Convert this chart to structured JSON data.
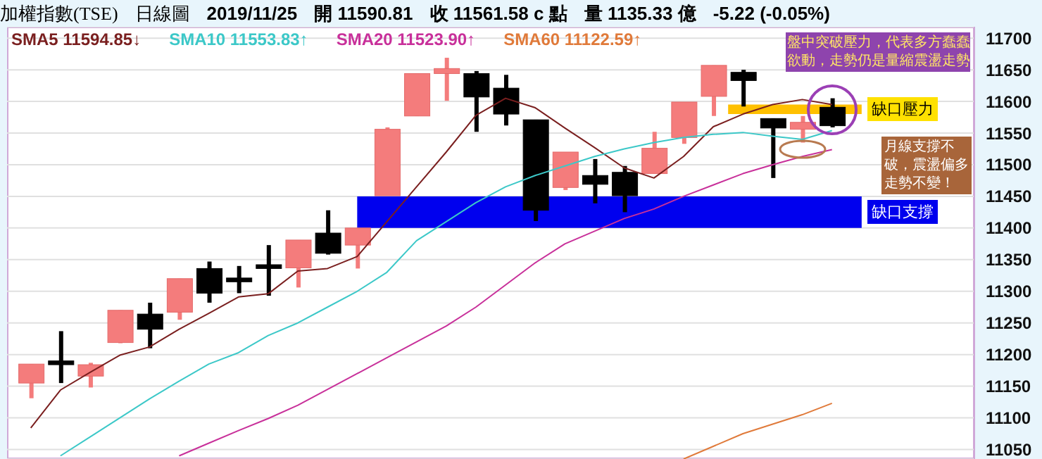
{
  "chart_data": {
    "type": "candlestick",
    "title": "加權指數(TSE)",
    "subtitle": "日線圖",
    "annotations": [
      "2019/11/25",
      "開 11590.81",
      "收 11561.58 c 點",
      "量 1135.33 億",
      "-5.22 (-0.05%)",
      "盤中突破壓力，代表多方蠢蠢欲動，走勢仍是量縮震盪走勢",
      "月線支撐不破，震盪偏多走勢不變！"
    ],
    "categories": [
      null,
      null,
      null,
      null,
      null,
      null,
      null,
      null,
      null,
      null,
      null,
      null,
      null,
      null,
      null,
      null,
      null,
      null,
      null,
      null,
      null,
      null,
      null,
      null,
      null,
      null,
      null,
      null
    ],
    "ohlc": [
      [
        11155,
        11185,
        11131,
        11185
      ],
      [
        11190,
        11237,
        11155,
        11184
      ],
      [
        11166,
        11187,
        11148,
        11184
      ],
      [
        11219,
        11270,
        11218,
        11270
      ],
      [
        11264,
        11282,
        11210,
        11240
      ],
      [
        11267,
        11320,
        11255,
        11320
      ],
      [
        11336,
        11347,
        11282,
        11297
      ],
      [
        11321,
        11340,
        11297,
        11315
      ],
      [
        11342,
        11373,
        11293,
        11336
      ],
      [
        11337,
        11381,
        11306,
        11381
      ],
      [
        11392,
        11428,
        11358,
        11360
      ],
      [
        11373,
        11400,
        11336,
        11400
      ],
      [
        11451,
        11559,
        11451,
        11556
      ],
      [
        11577,
        11644,
        11577,
        11644
      ],
      [
        11644,
        11669,
        11601,
        11652
      ],
      [
        11644,
        11648,
        11552,
        11607
      ],
      [
        11621,
        11642,
        11562,
        11580
      ],
      [
        11571,
        11571,
        11411,
        11428
      ],
      [
        11464,
        11520,
        11460,
        11520
      ],
      [
        11483,
        11509,
        11439,
        11469
      ],
      [
        11488,
        11498,
        11425,
        11451
      ],
      [
        11486,
        11552,
        11486,
        11526
      ],
      [
        11543,
        11599,
        11533,
        11599
      ],
      [
        11608,
        11657,
        11577,
        11657
      ],
      [
        11646,
        11650,
        11592,
        11633
      ],
      [
        11573,
        11573,
        11479,
        11558
      ],
      [
        11556,
        11577,
        11535,
        11567
      ],
      [
        11590.81,
        11605,
        11559,
        11561.58
      ]
    ],
    "colors": [
      "#f47c7c",
      "#000000",
      "#f47c7c",
      "#f47c7c",
      "#000000",
      "#f47c7c",
      "#000000",
      "#000000",
      "#000000",
      "#f47c7c",
      "#000000",
      "#f47c7c",
      "#f47c7c",
      "#f47c7c",
      "#f47c7c",
      "#000000",
      "#000000",
      "#000000",
      "#f47c7c",
      "#000000",
      "#000000",
      "#f47c7c",
      "#f47c7c",
      "#f47c7c",
      "#000000",
      "#000000",
      "#f47c7c",
      "#000000"
    ],
    "series": [
      {
        "name": "SMA5 11594.85↓",
        "type": "line",
        "color": "#7a1f1f",
        "values": [
          11084,
          11144,
          11172,
          11199,
          11212,
          11240,
          11265,
          11291,
          11296,
          11332,
          11336,
          11355,
          11410,
          11465,
          11520,
          11578,
          11605,
          11590,
          11558,
          11527,
          11495,
          11479,
          11513,
          11560,
          11580,
          11595,
          11603,
          11595
        ]
      },
      {
        "name": "SMA10 11553.83↑",
        "type": "line",
        "color": "#3cc8c8",
        "values": [
          null,
          11040,
          11070,
          11100,
          11130,
          11158,
          11185,
          11203,
          11230,
          11250,
          11275,
          11300,
          11330,
          11380,
          11410,
          11440,
          11465,
          11483,
          11498,
          11513,
          11525,
          11535,
          11543,
          11548,
          11551,
          11545,
          11540,
          11554
        ]
      },
      {
        "name": "SMA20 11523.90↑",
        "type": "line",
        "color": "#c8309a",
        "values": [
          null,
          null,
          null,
          null,
          null,
          11040,
          11060,
          11080,
          11099,
          11120,
          11145,
          11170,
          11195,
          11220,
          11245,
          11275,
          11310,
          11345,
          11375,
          11395,
          11415,
          11430,
          11450,
          11468,
          11486,
          11500,
          11513,
          11524
        ]
      },
      {
        "name": "SMA60 11122.59↑",
        "type": "line",
        "color": "#e07a3a",
        "values": [
          null,
          null,
          null,
          null,
          null,
          null,
          null,
          null,
          null,
          null,
          null,
          null,
          null,
          null,
          null,
          null,
          null,
          null,
          null,
          null,
          null,
          null,
          11035,
          11055,
          11075,
          11090,
          11105,
          11123
        ]
      }
    ],
    "bands": [
      {
        "axis": "y",
        "from": 11400,
        "to": 11450,
        "label": "缺口支撐",
        "color": "#0000ee"
      },
      {
        "axis": "y",
        "from": 11580,
        "to": 11595,
        "label": "缺口壓力",
        "color": "#ffc000"
      }
    ],
    "ylim": [
      11035,
      11718
    ],
    "yticks": [
      11050,
      11100,
      11150,
      11200,
      11250,
      11300,
      11350,
      11400,
      11450,
      11500,
      11550,
      11600,
      11650,
      11700
    ],
    "tick_labels": "y",
    "grid": "y",
    "legend": "top left",
    "marker": "none",
    "line_style": "solid"
  }
}
